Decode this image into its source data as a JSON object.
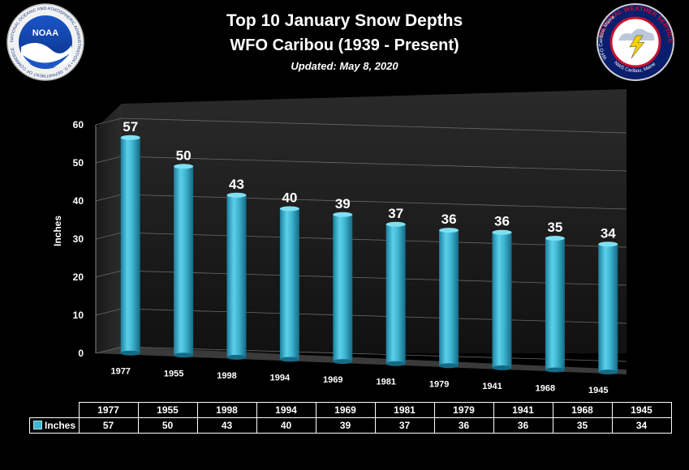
{
  "header": {
    "title": "Top 10 January Snow Depths",
    "subtitle": "WFO Caribou (1939 - Present)",
    "updated": "Updated:  May 8, 2020"
  },
  "logos": {
    "noaa_center": "NOAA",
    "noaa_ring": "NATIONAL OCEANIC AND ATMOSPHERIC ADMINISTRATION • U.S. DEPARTMENT OF COMMERCE",
    "nws_ring_top": "WFO Caribou, Maine",
    "nws_ring_mid": "NATIONAL WEATHER SERVICE",
    "nws_ring_bottom": "NWS Caribou, Maine"
  },
  "chart_data": {
    "type": "bar",
    "ylabel": "Inches",
    "ylim": [
      0,
      60
    ],
    "yticks": [
      0,
      10,
      20,
      30,
      40,
      50,
      60
    ],
    "grid": true,
    "categories": [
      "1977",
      "1955",
      "1998",
      "1994",
      "1969",
      "1981",
      "1979",
      "1941",
      "1968",
      "1945"
    ],
    "series": [
      {
        "name": "Inches",
        "values": [
          57,
          50,
          43,
          40,
          39,
          37,
          36,
          36,
          35,
          34
        ],
        "color": "#3fb6d2"
      }
    ]
  },
  "table": {
    "row_label": "Inches"
  }
}
